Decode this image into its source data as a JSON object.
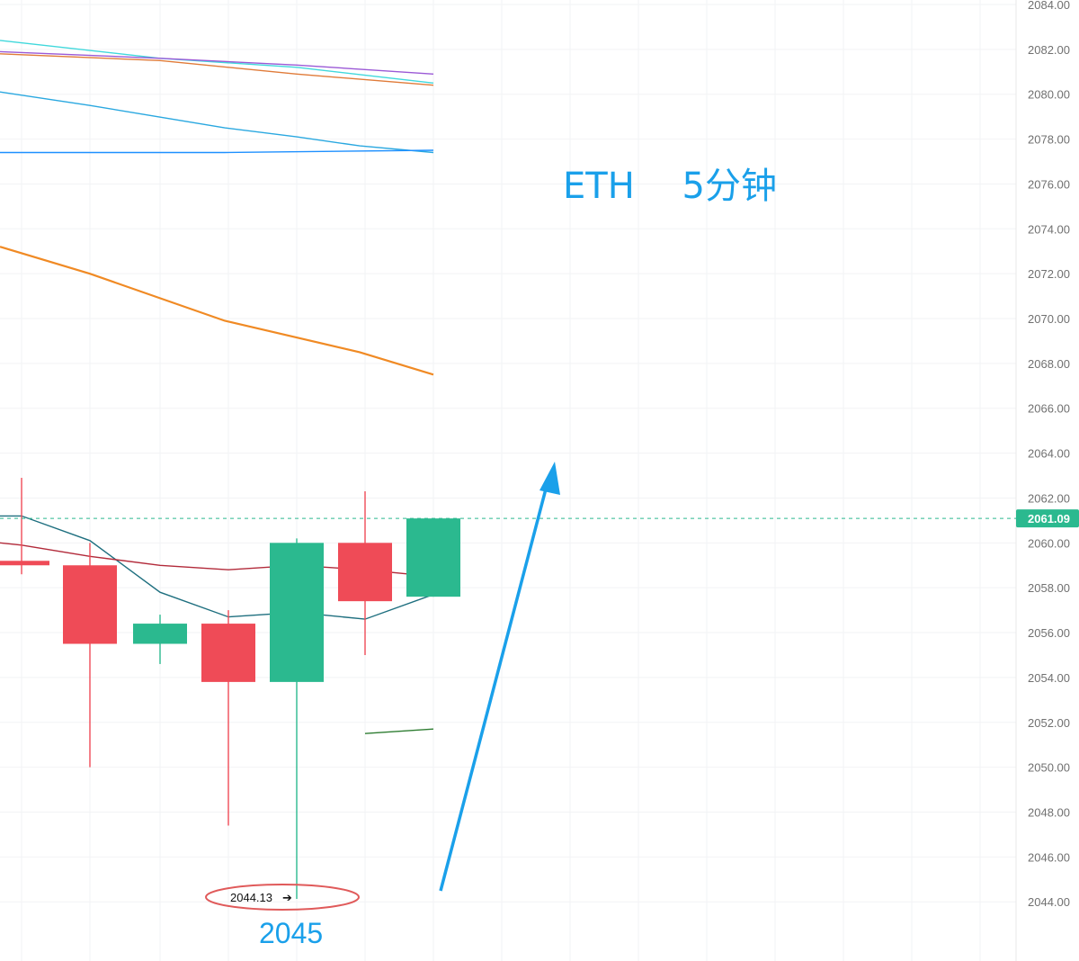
{
  "chart_data": {
    "type": "candlestick",
    "title": "ETH　 5分钟",
    "annotation": "2045",
    "low_marker": "2044.13",
    "last_price": "2061.09",
    "ylim": [
      2042.0,
      2085.0
    ],
    "y_ticks": [
      "2084.00",
      "2082.00",
      "2080.00",
      "2078.00",
      "2076.00",
      "2074.00",
      "2072.00",
      "2070.00",
      "2068.00",
      "2066.00",
      "2064.00",
      "2062.00",
      "2060.00",
      "2058.00",
      "2056.00",
      "2054.00",
      "2052.00",
      "2050.00",
      "2048.00",
      "2046.00",
      "2044.00"
    ],
    "grid": true,
    "candles": [
      {
        "open": 2059.2,
        "close": 2059.0,
        "high": 2062.9,
        "low": 2058.6,
        "color": "down"
      },
      {
        "open": 2059.0,
        "close": 2055.5,
        "high": 2060.0,
        "low": 2050.0,
        "color": "down"
      },
      {
        "open": 2055.5,
        "close": 2056.4,
        "high": 2056.8,
        "low": 2054.6,
        "color": "up"
      },
      {
        "open": 2056.4,
        "close": 2053.8,
        "high": 2057.0,
        "low": 2047.4,
        "color": "down"
      },
      {
        "open": 2053.8,
        "close": 2060.0,
        "high": 2060.2,
        "low": 2044.13,
        "color": "up"
      },
      {
        "open": 2060.0,
        "close": 2057.4,
        "high": 2062.3,
        "low": 2055.0,
        "color": "down"
      },
      {
        "open": 2057.6,
        "close": 2061.09,
        "high": 2061.09,
        "low": 2057.6,
        "color": "up"
      }
    ],
    "moving_averages": [
      {
        "color": "#40d8dc",
        "points": [
          [
            0,
            2082.4
          ],
          [
            178,
            2081.6
          ],
          [
            330,
            2081.2
          ],
          [
            482,
            2080.5
          ]
        ]
      },
      {
        "color": "#9b59d6",
        "points": [
          [
            0,
            2081.9
          ],
          [
            178,
            2081.6
          ],
          [
            330,
            2081.3
          ],
          [
            482,
            2080.9
          ]
        ]
      },
      {
        "color": "#e07b39",
        "points": [
          [
            0,
            2081.8
          ],
          [
            178,
            2081.5
          ],
          [
            330,
            2080.9
          ],
          [
            482,
            2080.4
          ]
        ]
      },
      {
        "color": "#2aa8e0",
        "points": [
          [
            0,
            2080.1
          ],
          [
            100,
            2079.5
          ],
          [
            250,
            2078.5
          ],
          [
            330,
            2078.1
          ],
          [
            400,
            2077.7
          ],
          [
            482,
            2077.4
          ]
        ]
      },
      {
        "color": "#1e90ff",
        "points": [
          [
            0,
            2077.4
          ],
          [
            250,
            2077.4
          ],
          [
            482,
            2077.5
          ]
        ]
      },
      {
        "color": "#f08a24",
        "points": [
          [
            0,
            2073.2
          ],
          [
            100,
            2072.0
          ],
          [
            250,
            2069.9
          ],
          [
            400,
            2068.5
          ],
          [
            482,
            2067.5
          ]
        ]
      },
      {
        "color": "#1e6f7f",
        "points": [
          [
            0,
            2061.2
          ],
          [
            24,
            2061.2
          ],
          [
            100,
            2060.1
          ],
          [
            178,
            2057.8
          ],
          [
            254,
            2056.7
          ],
          [
            330,
            2056.9
          ],
          [
            406,
            2056.6
          ],
          [
            482,
            2057.7
          ]
        ]
      },
      {
        "color": "#b22a3a",
        "points": [
          [
            0,
            2060.0
          ],
          [
            24,
            2059.9
          ],
          [
            100,
            2059.4
          ],
          [
            178,
            2059.0
          ],
          [
            254,
            2058.8
          ],
          [
            330,
            2059.0
          ],
          [
            406,
            2058.8
          ],
          [
            482,
            2058.5
          ]
        ]
      },
      {
        "color": "#2e7d32",
        "points": [
          [
            406,
            2051.5
          ],
          [
            482,
            2051.7
          ]
        ]
      }
    ],
    "colors": {
      "up": "#2bb98f",
      "down": "#ef4b57",
      "arrow": "#1aa0ea",
      "price_tag": "#2bb98f",
      "highlight_ellipse": "#e05a5a"
    }
  }
}
